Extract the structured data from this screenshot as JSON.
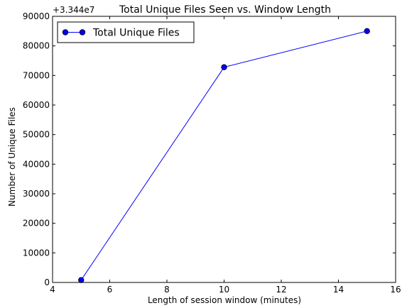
{
  "chart_data": {
    "type": "line",
    "title": "Total Unique Files Seen vs. Window Length",
    "xlabel": "Length of session window (minutes)",
    "ylabel": "Number of Unique Files",
    "offset_label": "+3.344e7",
    "xlim": [
      4,
      16
    ],
    "ylim": [
      0,
      90000
    ],
    "x_ticks": [
      "4",
      "6",
      "8",
      "10",
      "12",
      "14",
      "16"
    ],
    "y_ticks": [
      "0",
      "10000",
      "20000",
      "30000",
      "40000",
      "50000",
      "60000",
      "70000",
      "80000",
      "90000"
    ],
    "grid": false,
    "legend_position": "top-left",
    "series": [
      {
        "name": "Total Unique Files",
        "x": [
          5,
          10,
          15
        ],
        "y": [
          800,
          72800,
          85000
        ],
        "color": "#0000ff",
        "marker": "circle"
      }
    ]
  }
}
